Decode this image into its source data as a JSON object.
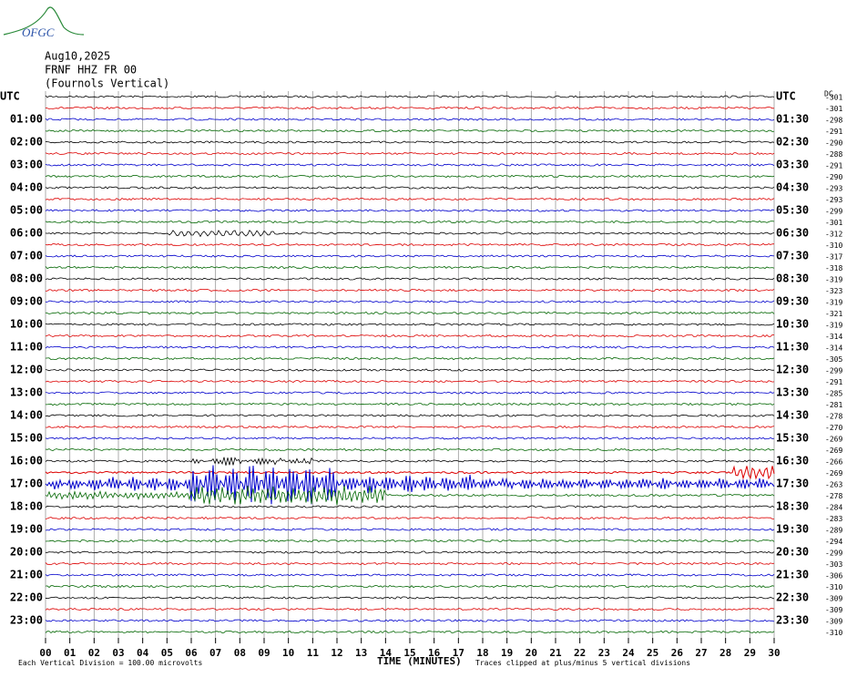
{
  "header": {
    "logo": "OFGC",
    "date": "Aug10,2025",
    "station": "FRNF HHZ FR 00",
    "component": "(Fournols Vertical)",
    "dc_label": "DC"
  },
  "left_labels": [
    "UTC",
    "01:00",
    "02:00",
    "03:00",
    "04:00",
    "05:00",
    "06:00",
    "07:00",
    "08:00",
    "09:00",
    "10:00",
    "11:00",
    "12:00",
    "13:00",
    "14:00",
    "15:00",
    "16:00",
    "17:00",
    "18:00",
    "19:00",
    "20:00",
    "21:00",
    "22:00",
    "23:00"
  ],
  "right_labels": [
    "UTC",
    "01:30",
    "02:30",
    "03:30",
    "04:30",
    "05:30",
    "06:30",
    "07:30",
    "08:30",
    "09:30",
    "10:30",
    "11:30",
    "12:30",
    "13:30",
    "14:30",
    "15:30",
    "16:30",
    "17:30",
    "18:30",
    "19:30",
    "20:30",
    "21:30",
    "22:30",
    "23:30"
  ],
  "dc_offsets": [
    -301,
    -301,
    -298,
    -291,
    -290,
    -288,
    -291,
    -290,
    -293,
    -293,
    -299,
    -301,
    -312,
    -310,
    -317,
    -318,
    -319,
    -323,
    -319,
    -321,
    -319,
    -314,
    -314,
    -305,
    -299,
    -291,
    -285,
    -281,
    -278,
    -270,
    -269,
    -269,
    -266,
    -269,
    -263,
    -278,
    -284,
    -283,
    -289,
    -294,
    -299,
    -303,
    -306,
    -310,
    -309,
    -309,
    -309,
    -310
  ],
  "x_ticks": [
    "00",
    "01",
    "02",
    "03",
    "04",
    "05",
    "06",
    "07",
    "08",
    "09",
    "10",
    "11",
    "12",
    "13",
    "14",
    "15",
    "16",
    "17",
    "18",
    "19",
    "20",
    "21",
    "22",
    "23",
    "24",
    "25",
    "26",
    "27",
    "28",
    "29",
    "30"
  ],
  "footer": {
    "scale": "Each Vertical Division =  100.00 microvolts",
    "x_label": "TIME (MINUTES)",
    "clip": "Traces clipped at plus/minus 5 vertical divisions"
  }
}
